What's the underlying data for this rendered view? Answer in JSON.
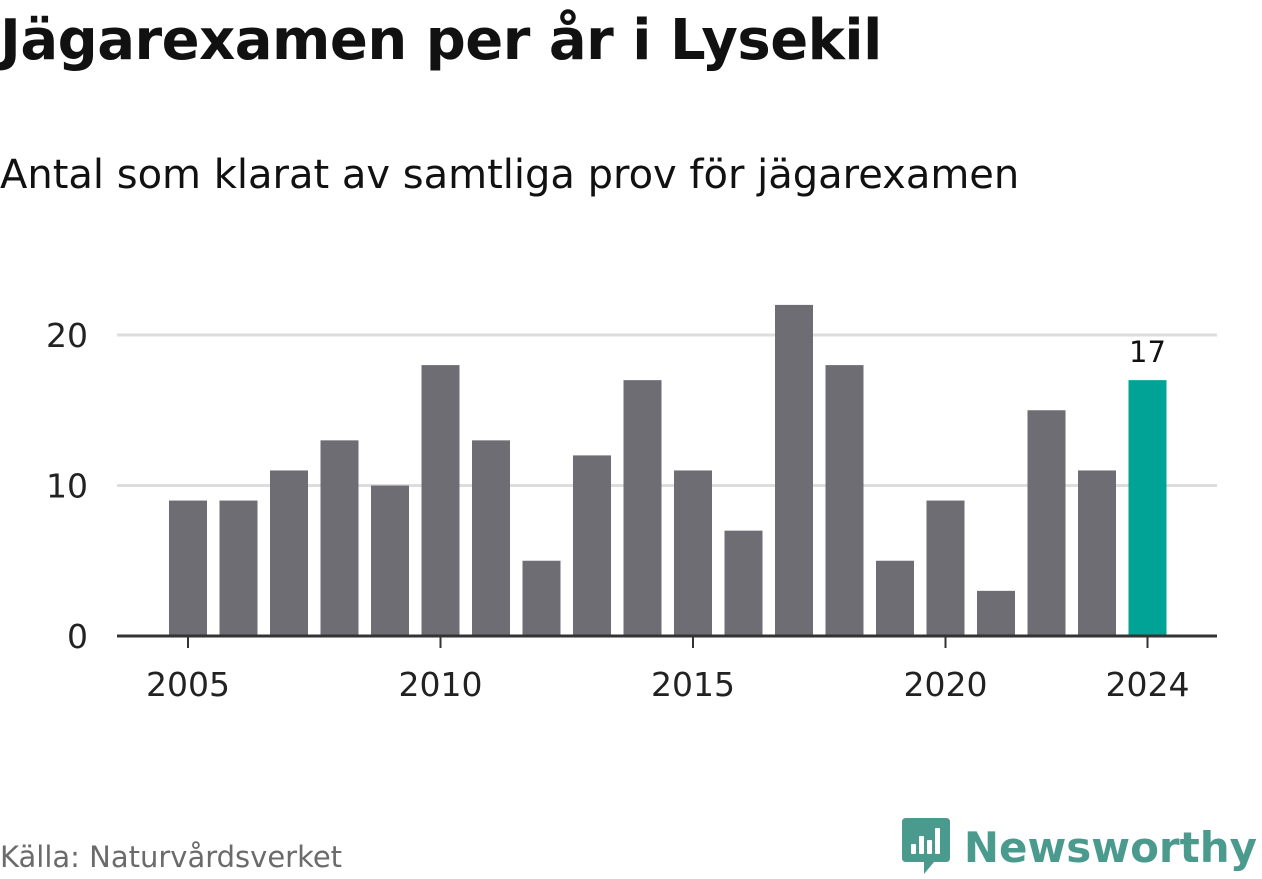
{
  "title": "Jägarexamen per år i Lysekil",
  "subtitle": "Antal som klarat av samtliga prov för jägarexamen",
  "source": "Källa: Naturvårdsverket",
  "brand": "Newsworthy",
  "colors": {
    "bar": "#6e6d73",
    "highlight": "#00a396",
    "grid": "#dddddd",
    "axis": "#333333",
    "brand": "#4a9a8e"
  },
  "chart_data": {
    "type": "bar",
    "x": [
      2005,
      2006,
      2007,
      2008,
      2009,
      2010,
      2011,
      2012,
      2013,
      2014,
      2015,
      2016,
      2017,
      2018,
      2019,
      2020,
      2021,
      2022,
      2023,
      2024
    ],
    "values": [
      9,
      9,
      11,
      13,
      10,
      18,
      13,
      5,
      12,
      17,
      11,
      7,
      22,
      18,
      5,
      9,
      3,
      15,
      11,
      17
    ],
    "highlight": 2024,
    "data_labels": [
      {
        "x": 2024,
        "text": "17"
      }
    ],
    "x_ticks": [
      "2005",
      "2010",
      "2015",
      "2020",
      "2024"
    ],
    "y_ticks": [
      "0",
      "10",
      "20"
    ],
    "ylim": [
      0,
      22
    ],
    "xlabel": "",
    "ylabel": "",
    "grid": true
  }
}
